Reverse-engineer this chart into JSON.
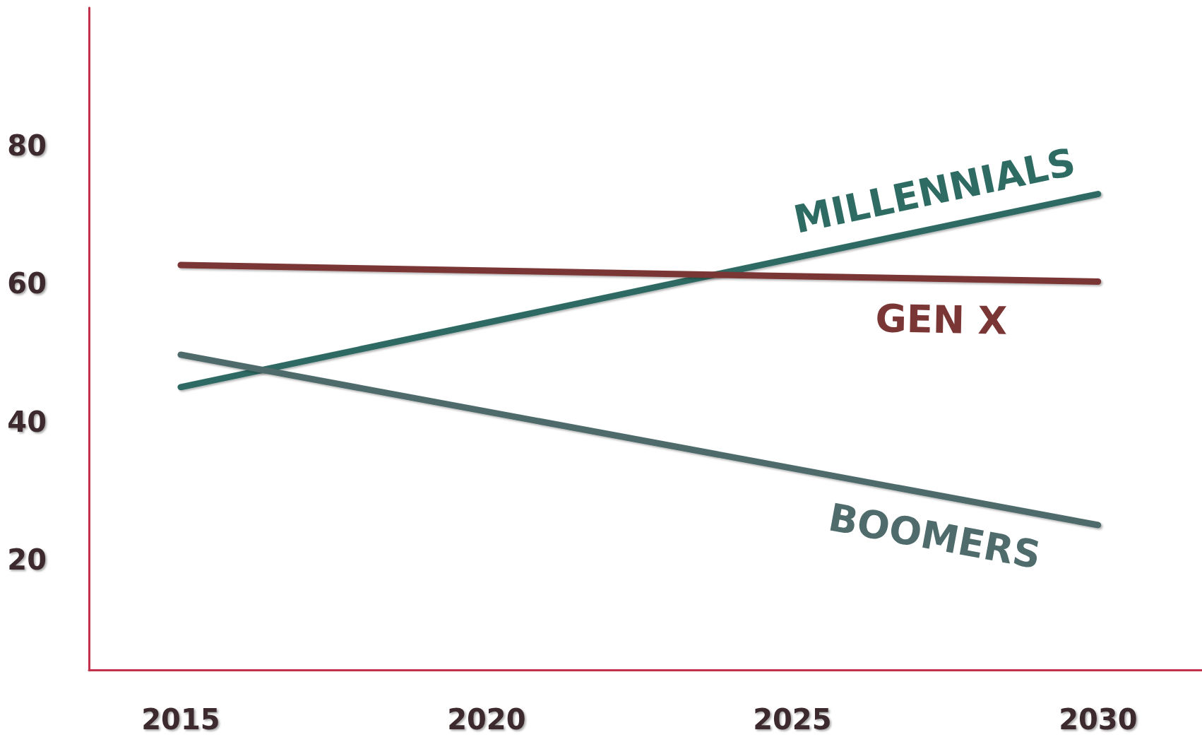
{
  "chart_data": {
    "type": "line",
    "x": [
      2015,
      2030
    ],
    "series": [
      {
        "name": "MILLENNIALS",
        "color": "#2e6b63",
        "values": [
          45,
          73
        ]
      },
      {
        "name": "GEN X",
        "color": "#7a3535",
        "values": [
          62.7,
          60.3
        ]
      },
      {
        "name": "BOOMERS",
        "color": "#4f6b6b",
        "values": [
          49.7,
          25
        ]
      }
    ],
    "xlim": [
      2013.5,
      2031.7
    ],
    "xticks": [
      2015,
      2020,
      2025,
      2030
    ],
    "ylim": [
      4,
      100
    ],
    "yticks": [
      20,
      40,
      60,
      80
    ],
    "grid": false,
    "legend": false,
    "marker": "none",
    "line_style": "solid"
  }
}
